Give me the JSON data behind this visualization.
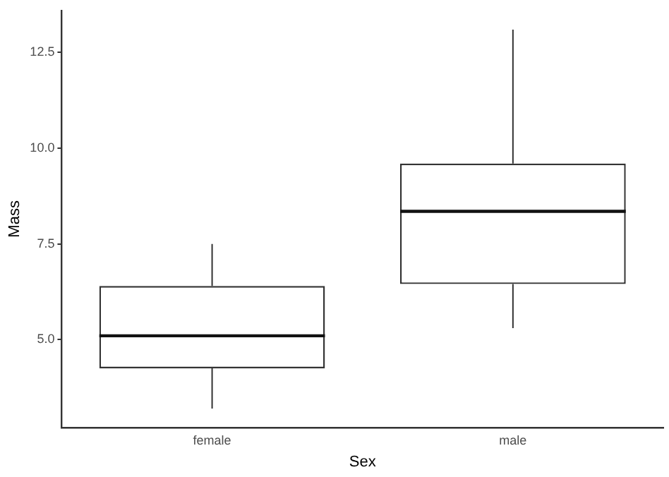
{
  "chart_data": {
    "type": "box",
    "xlabel": "Sex",
    "ylabel": "Mass",
    "categories": [
      "female",
      "male"
    ],
    "boxes": [
      {
        "low": 3.2,
        "q1": 4.25,
        "median": 5.1,
        "q3": 6.4,
        "high": 7.5
      },
      {
        "low": 5.3,
        "q1": 6.45,
        "median": 8.35,
        "q3": 9.6,
        "high": 13.1
      }
    ],
    "color": "#333333",
    "ylim": [
      2.7,
      13.6
    ],
    "yticks": [
      {
        "value": 5,
        "label": "5.0"
      },
      7.5,
      {
        "value": 10,
        "label": "10.0"
      },
      12.5
    ],
    "grid": false,
    "legend": false
  }
}
